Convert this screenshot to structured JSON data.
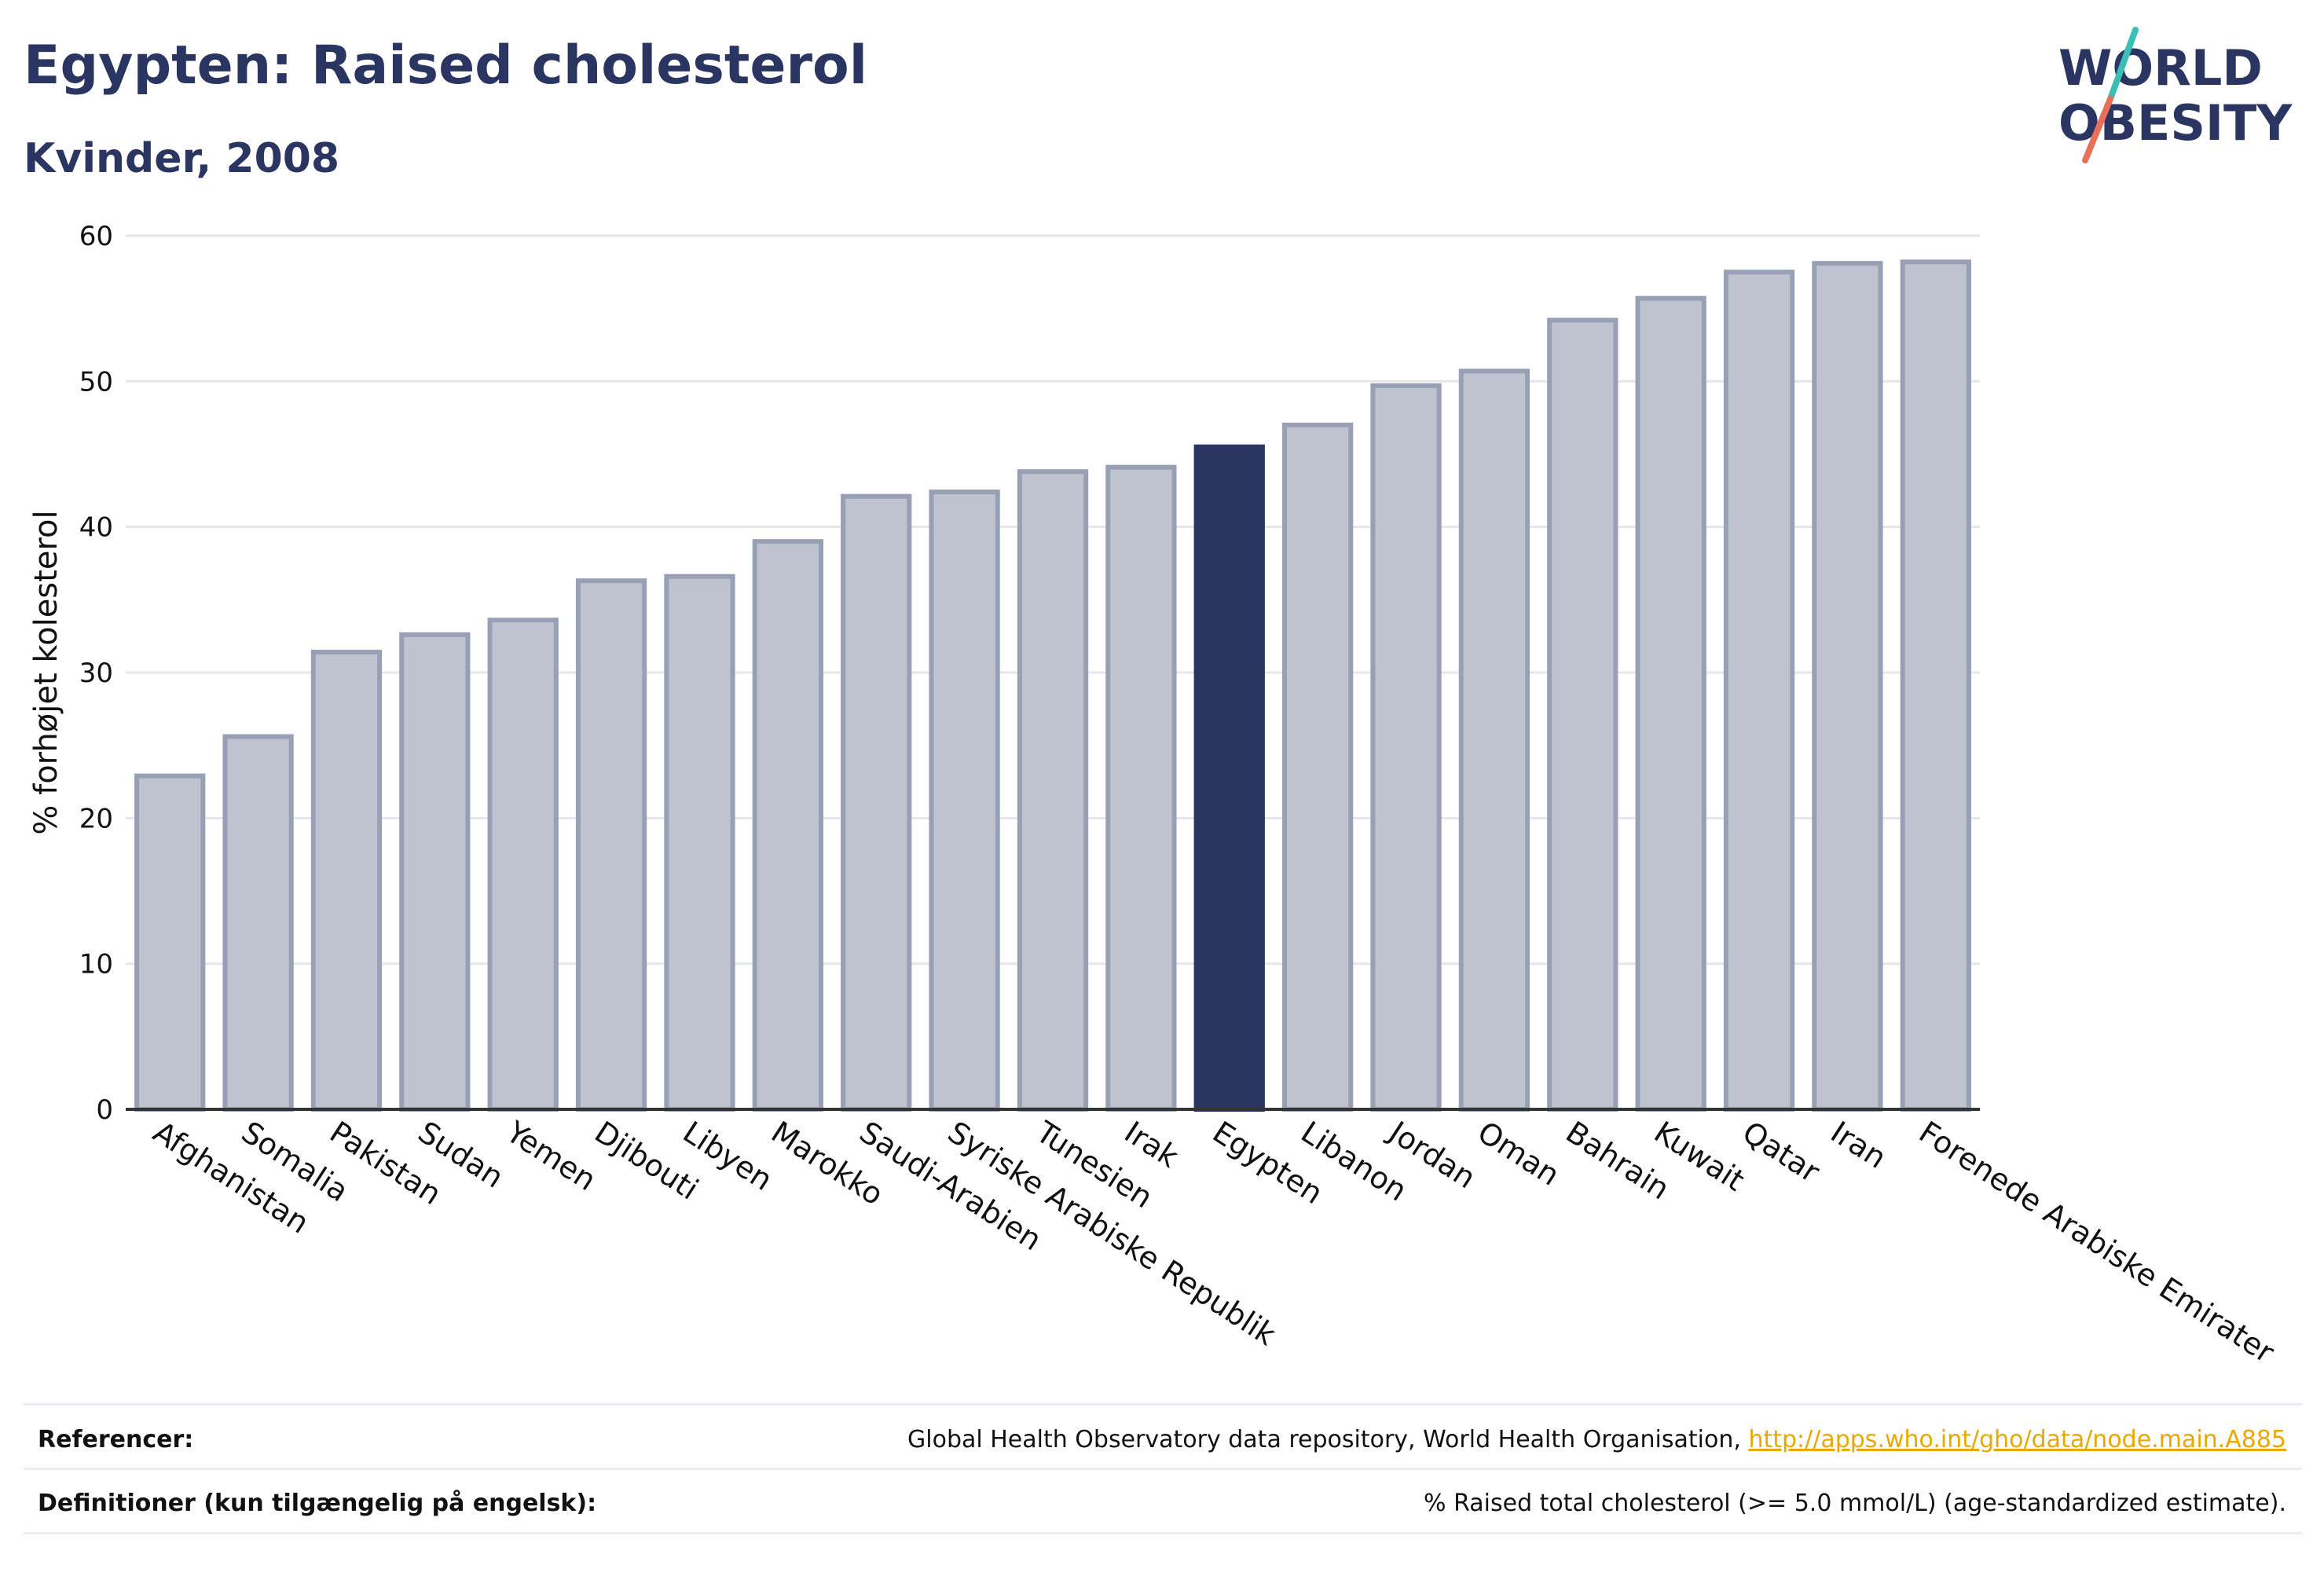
{
  "title": "Egypten: Raised cholesterol",
  "subtitle": "Kvinder, 2008",
  "logo": {
    "text_line1": "WORLD",
    "text_line2": "OBESITY",
    "accent_colors": [
      "#3bbfb5",
      "#e8705a"
    ]
  },
  "chart_data": {
    "type": "bar",
    "ylabel": "% forhøjet kolesterol",
    "xlabel": "",
    "ylim": [
      0,
      60
    ],
    "yticks": [
      0,
      10,
      20,
      30,
      40,
      50,
      60
    ],
    "grid": true,
    "categories": [
      "Afghanistan",
      "Somalia",
      "Pakistan",
      "Sudan",
      "Yemen",
      "Djibouti",
      "Libyen",
      "Marokko",
      "Saudi-Arabien",
      "Syriske Arabiske Republik",
      "Tunesien",
      "Irak",
      "Egypten",
      "Libanon",
      "Jordan",
      "Oman",
      "Bahrain",
      "Kuwait",
      "Qatar",
      "Iran",
      "Forenede Arabiske Emirater"
    ],
    "values": [
      22.9,
      25.6,
      31.4,
      32.6,
      33.6,
      36.3,
      36.6,
      39.0,
      42.1,
      42.4,
      43.8,
      44.1,
      45.5,
      47.0,
      49.7,
      50.7,
      54.2,
      55.7,
      57.5,
      58.1,
      58.2
    ],
    "highlight": "Egypten",
    "colors": {
      "bar": "#bfc2cf",
      "bar_border": "#98a0b6",
      "highlight": "#2b3561",
      "grid": "#e6e6ec",
      "axis": "#333333"
    }
  },
  "footer": {
    "references_label": "Referencer:",
    "references_text": "Global Health Observatory data repository, World Health Organisation, ",
    "references_link": "http://apps.who.int/gho/data/node.main.A885",
    "definitions_label": "Definitioner (kun tilgængelig på engelsk):",
    "definitions_text": "% Raised total cholesterol (>= 5.0 mmol/L) (age-standardized estimate)."
  }
}
